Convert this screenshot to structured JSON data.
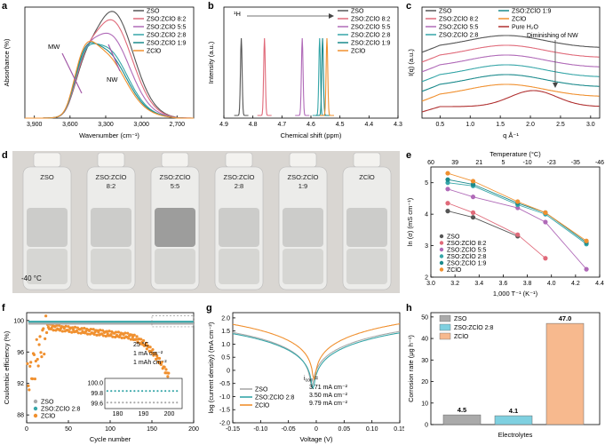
{
  "colors": {
    "ZSO": "#555555",
    "ZSO:ZClO 8:2": "#e06a7a",
    "ZSO:ZClO 5:5": "#b06ab8",
    "ZSO:ZClO 2:8": "#36a6a8",
    "ZSO:ZClO 1:9": "#1b8a8c",
    "ZClO": "#f0902f",
    "Pure H2O": "#b03030"
  },
  "panel_labels": [
    "a",
    "b",
    "c",
    "d",
    "e",
    "f",
    "g",
    "h"
  ],
  "chart_data": [
    {
      "id": "a",
      "type": "line",
      "xlabel": "Wavenumber (cm⁻¹)",
      "ylabel": "Absorbance (%)",
      "xticks": [
        "3,900",
        "3,600",
        "3,300",
        "3,000",
        "2,700"
      ],
      "xlim": [
        3980,
        2560
      ],
      "ylim": [
        0,
        0.38
      ],
      "annotations": [
        "MW",
        "NW"
      ],
      "series": [
        {
          "name": "ZSO",
          "peak_x": 3240,
          "peak_y": 0.34
        },
        {
          "name": "ZSO:ZClO 8:2",
          "peak_x": 3250,
          "peak_y": 0.31
        },
        {
          "name": "ZSO:ZClO 5:5",
          "peak_x": 3270,
          "peak_y": 0.26
        },
        {
          "name": "ZSO:ZClO 2:8",
          "peak_x": 3290,
          "peak_y": 0.21
        },
        {
          "name": "ZSO:ZClO 1:9",
          "peak_x": 3300,
          "peak_y": 0.2
        },
        {
          "name": "ZClO",
          "peak_x": 3310,
          "peak_y": 0.19
        }
      ]
    },
    {
      "id": "b",
      "type": "line",
      "xlabel": "Chemical shift (ppm)",
      "ylabel": "Intensity (a.u.)",
      "annotation": "¹H",
      "xticks": [
        "4.9",
        "4.8",
        "4.7",
        "4.6",
        "4.5",
        "4.4",
        "4.3"
      ],
      "xlim": [
        4.9,
        4.3
      ],
      "series": [
        {
          "name": "ZSO",
          "peak": 4.84
        },
        {
          "name": "ZSO:ZClO 8:2",
          "peak": 4.76
        },
        {
          "name": "ZSO:ZClO 5:5",
          "peak": 4.63
        },
        {
          "name": "ZSO:ZClO 2:8",
          "peak": 4.57
        },
        {
          "name": "ZSO:ZClO 1:9",
          "peak": 4.56
        },
        {
          "name": "ZClO",
          "peak": 4.545
        }
      ]
    },
    {
      "id": "c",
      "type": "line",
      "xlabel": "q Å⁻¹",
      "ylabel": "I(q) (a.u.)",
      "annotation": "Diminishing of NW",
      "xticks": [
        "0.5",
        "1.0",
        "1.5",
        "2.0",
        "2.5",
        "3.0"
      ],
      "xlim": [
        0.2,
        3.15
      ],
      "series": [
        {
          "name": "ZSO",
          "offset": 6
        },
        {
          "name": "ZSO:ZClO 8:2",
          "offset": 5
        },
        {
          "name": "ZSO:ZClO 5:5",
          "offset": 4
        },
        {
          "name": "ZSO:ZClO 2:8",
          "offset": 3
        },
        {
          "name": "ZSO:ZClO 1:9",
          "offset": 2
        },
        {
          "name": "ZClO",
          "offset": 1
        },
        {
          "name": "Pure H₂O",
          "offset": 0
        }
      ]
    },
    {
      "id": "e",
      "type": "scatter",
      "xlabel": "1,000 T⁻¹ (K⁻¹)",
      "ylabel": "ln (σ) (mS cm⁻¹)",
      "top_label": "Temperature (°C)",
      "xticks": [
        "3.0",
        "3.2",
        "3.4",
        "3.6",
        "3.8",
        "4.0",
        "4.2",
        "4.4"
      ],
      "yticks": [
        "2",
        "3",
        "4",
        "5"
      ],
      "top_ticks": [
        "60",
        "39",
        "21",
        "5",
        "-10",
        "-23",
        "-35",
        "-46"
      ],
      "xlim": [
        3.0,
        4.4
      ],
      "ylim": [
        2,
        5.5
      ],
      "x": [
        3.14,
        3.35,
        3.72,
        3.95,
        4.29
      ],
      "series": [
        {
          "name": "ZSO",
          "values": [
            4.1,
            3.9,
            3.3,
            null,
            null
          ]
        },
        {
          "name": "ZSO:ZClO 8:2",
          "values": [
            4.35,
            4.05,
            3.35,
            2.6,
            null
          ]
        },
        {
          "name": "ZSO:ZClO 5:5",
          "values": [
            4.8,
            4.55,
            4.2,
            3.75,
            2.25
          ]
        },
        {
          "name": "ZSO:ZClO 2:8",
          "values": [
            5.0,
            4.9,
            4.3,
            4.0,
            3.05
          ]
        },
        {
          "name": "ZSO:ZClO 1:9",
          "values": [
            5.1,
            4.95,
            4.35,
            4.05,
            3.1
          ]
        },
        {
          "name": "ZClO",
          "values": [
            5.3,
            5.05,
            4.4,
            4.05,
            3.15
          ]
        }
      ]
    },
    {
      "id": "f",
      "type": "scatter",
      "xlabel": "Cycle number",
      "ylabel": "Coulombic efficiency (%)",
      "xticks": [
        "0",
        "50",
        "100",
        "150",
        "200"
      ],
      "yticks": [
        "88",
        "92",
        "96",
        "100"
      ],
      "xlim": [
        0,
        200
      ],
      "ylim": [
        87,
        101
      ],
      "conditions": [
        "25 °C",
        "1 mA cm⁻²",
        "1 mAh cm⁻²"
      ],
      "inset": {
        "xticks": [
          "180",
          "190",
          "200"
        ],
        "yticks": [
          "99.6",
          "99.8",
          "100.0"
        ]
      },
      "series": [
        {
          "name": "ZSO",
          "level": 99.6
        },
        {
          "name": "ZSO:ZClO 2:8",
          "level": 99.85
        },
        {
          "name": "ZClO",
          "peak": 99.2
        }
      ]
    },
    {
      "id": "g",
      "type": "line",
      "xlabel": "Voltage (V)",
      "ylabel": "log (current density) (mA cm⁻²)",
      "xticks": [
        "-0.15",
        "-0.10",
        "-0.05",
        "0",
        "0.05",
        "0.10",
        "0.15"
      ],
      "yticks": [
        "-2.0",
        "-1.5",
        "-1.0",
        "-0.5",
        "0",
        "0.5",
        "1.0",
        "1.5",
        "2.0"
      ],
      "xlim": [
        -0.15,
        0.15
      ],
      "ylim": [
        -2.0,
        2.2
      ],
      "icorr_label": "i",
      "icorr_sub": "corr",
      "icorr_eq": " =",
      "icorr": [
        "3.71 mA cm⁻²",
        "3.50 mA cm⁻²",
        "9.79 mA cm⁻²"
      ],
      "series": [
        {
          "name": "ZSO"
        },
        {
          "name": "ZSO:ZClO 2:8"
        },
        {
          "name": "ZClO"
        }
      ]
    },
    {
      "id": "h",
      "type": "bar",
      "xlabel": "Electrolytes",
      "ylabel": "Corrosion rate (μg h⁻¹)",
      "yticks": [
        "0",
        "10",
        "20",
        "30",
        "40",
        "50"
      ],
      "ylim": [
        0,
        52
      ],
      "categories": [
        "ZSO",
        "ZSO:ZClO 2:8",
        "ZClO"
      ],
      "values": [
        4.5,
        4.1,
        47.0
      ],
      "labels": [
        "4.5",
        "4.1",
        "47.0"
      ]
    }
  ],
  "photo": {
    "vials": [
      "ZSO",
      "ZSO:ZClO\n8:2",
      "ZSO:ZClO\n5:5",
      "ZSO:ZClO\n2:8",
      "ZSO:ZClO\n1:9",
      "ZClO"
    ],
    "temperature": "-40 °C"
  }
}
